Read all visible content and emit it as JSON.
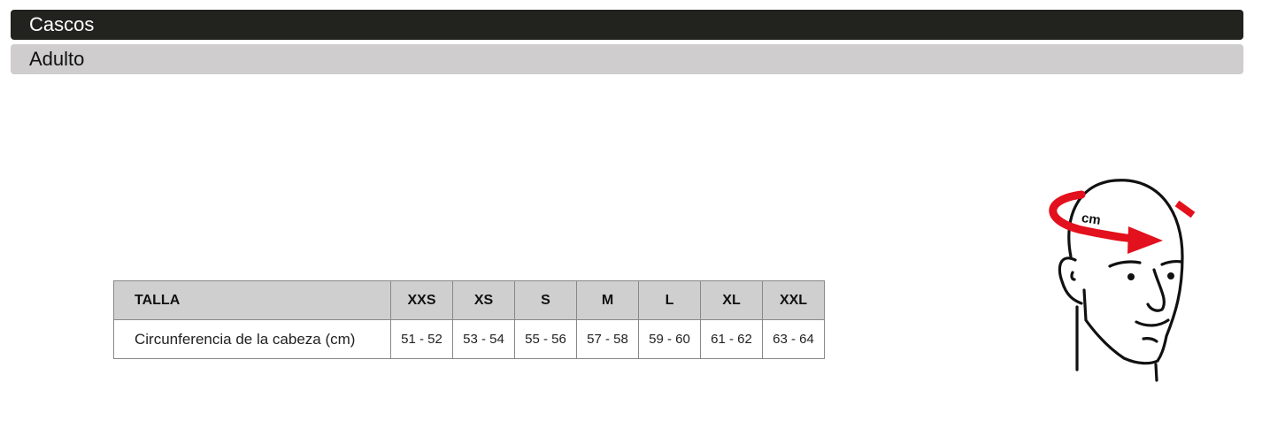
{
  "category": "Cascos",
  "subcategory": "Adulto",
  "table": {
    "header_label": "TALLA",
    "row_label": "Circunferencia de la cabeza (cm)",
    "sizes": [
      "XXS",
      "XS",
      "S",
      "M",
      "L",
      "XL",
      "XXL"
    ],
    "values": [
      "51 - 52",
      "53 - 54",
      "55 - 56",
      "57 - 58",
      "59 - 60",
      "61 - 62",
      "63 - 64"
    ]
  },
  "illustration": {
    "label": "cm",
    "accent": "#e3101d"
  }
}
